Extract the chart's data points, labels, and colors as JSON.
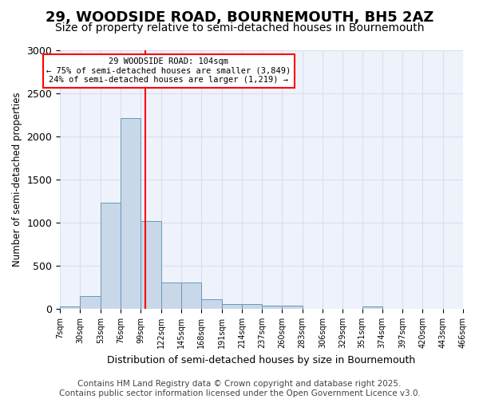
{
  "title": "29, WOODSIDE ROAD, BOURNEMOUTH, BH5 2AZ",
  "subtitle": "Size of property relative to semi-detached houses in Bournemouth",
  "xlabel": "Distribution of semi-detached houses by size in Bournemouth",
  "ylabel": "Number of semi-detached properties",
  "bar_color": "#c8d8e8",
  "bar_edge_color": "#6699bb",
  "vline_color": "red",
  "vline_x": 104,
  "annotation_title": "29 WOODSIDE ROAD: 104sqm",
  "annotation_line1": "← 75% of semi-detached houses are smaller (3,849)",
  "annotation_line2": "24% of semi-detached houses are larger (1,219) →",
  "annotation_box_color": "white",
  "annotation_box_edgecolor": "red",
  "bins": [
    7,
    30,
    53,
    76,
    99,
    122,
    145,
    168,
    191,
    214,
    237,
    260,
    283,
    306,
    329,
    351,
    374,
    397,
    420,
    443,
    466
  ],
  "values": [
    30,
    150,
    1230,
    2210,
    1020,
    310,
    310,
    110,
    60,
    60,
    40,
    40,
    0,
    0,
    0,
    30,
    0,
    0,
    0,
    0
  ],
  "tick_labels": [
    "7sqm",
    "30sqm",
    "53sqm",
    "76sqm",
    "99sqm",
    "122sqm",
    "145sqm",
    "168sqm",
    "191sqm",
    "214sqm",
    "237sqm",
    "260sqm",
    "283sqm",
    "306sqm",
    "329sqm",
    "351sqm",
    "374sqm",
    "397sqm",
    "420sqm",
    "443sqm",
    "466sqm"
  ],
  "ylim": [
    0,
    3000
  ],
  "yticks": [
    0,
    500,
    1000,
    1500,
    2000,
    2500,
    3000
  ],
  "grid_color": "#ddddee",
  "background_color": "#eef2fb",
  "footer_line1": "Contains HM Land Registry data © Crown copyright and database right 2025.",
  "footer_line2": "Contains public sector information licensed under the Open Government Licence v3.0.",
  "title_fontsize": 13,
  "subtitle_fontsize": 10,
  "footer_fontsize": 7.5
}
